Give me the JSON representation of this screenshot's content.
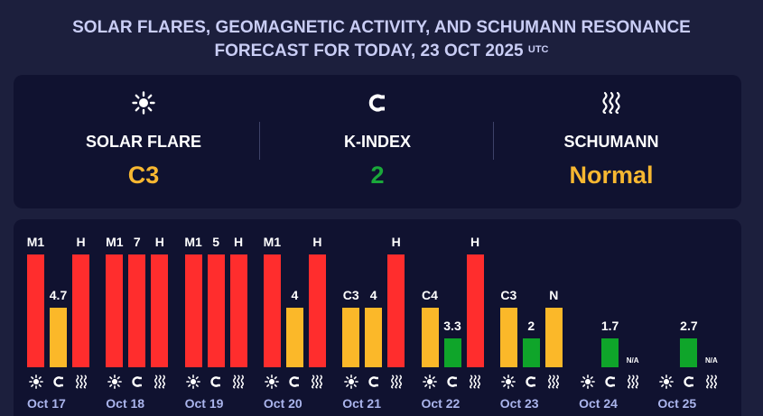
{
  "title": {
    "line1": "SOLAR FLARES, GEOMAGNETIC ACTIVITY, AND SCHUMANN RESONANCE",
    "line2": "FORECAST FOR TODAY, 23 OCT 2025",
    "tz": "UTC"
  },
  "summary": [
    {
      "label": "SOLAR FLARE",
      "value": "C3",
      "icon": "sun-icon",
      "color": "#f7b731"
    },
    {
      "label": "K-INDEX",
      "value": "2",
      "icon": "magnet-icon",
      "color": "#1aa83a"
    },
    {
      "label": "SCHUMANN",
      "value": "Normal",
      "icon": "waves-icon",
      "color": "#f7b731"
    }
  ],
  "colors": {
    "red": "#ff2d2d",
    "yellow": "#fbb829",
    "green": "#0fa52a"
  },
  "chart_data": {
    "type": "bar",
    "categories": [
      "Oct 17",
      "Oct 18",
      "Oct 19",
      "Oct 20",
      "Oct 21",
      "Oct 22",
      "Oct 23",
      "Oct 24",
      "Oct 25"
    ],
    "series": [
      {
        "metric": "solar-flare",
        "icon": "sun-icon",
        "labels": [
          "M1",
          "M1",
          "M1",
          "M1",
          "C3",
          "C4",
          "C3",
          null,
          null
        ],
        "levels": [
          1,
          1,
          1,
          1,
          0.53,
          0.53,
          0.53,
          null,
          null
        ],
        "colors": [
          "red",
          "red",
          "red",
          "red",
          "yellow",
          "yellow",
          "yellow",
          null,
          null
        ]
      },
      {
        "metric": "k-index",
        "icon": "magnet-icon",
        "labels": [
          "4.7",
          "7",
          "5",
          "4",
          "4",
          "3.3",
          "2",
          "1.7",
          "2.7"
        ],
        "levels": [
          0.53,
          1,
          1,
          0.53,
          0.53,
          0.26,
          0.26,
          0.26,
          0.26
        ],
        "colors": [
          "yellow",
          "red",
          "red",
          "yellow",
          "yellow",
          "green",
          "green",
          "green",
          "green"
        ]
      },
      {
        "metric": "schumann",
        "icon": "waves-icon",
        "labels": [
          "H",
          "H",
          "H",
          "H",
          "H",
          "H",
          "N",
          "N/A",
          "N/A"
        ],
        "levels": [
          1,
          1,
          1,
          1,
          1,
          1,
          0.53,
          null,
          null
        ],
        "colors": [
          "red",
          "red",
          "red",
          "red",
          "red",
          "red",
          "yellow",
          null,
          null
        ]
      }
    ]
  }
}
